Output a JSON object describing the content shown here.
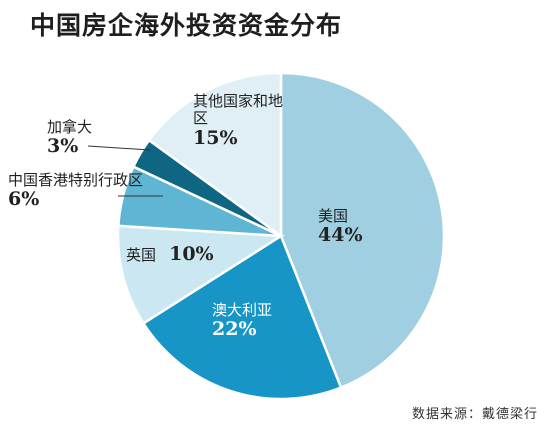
{
  "chart_data": {
    "type": "pie",
    "title": "中国房企海外投资资金分布",
    "source": "数据来源：戴德梁行",
    "slices": [
      {
        "name": "美国",
        "value": 44,
        "label": "44%",
        "color": "#9fcfe0"
      },
      {
        "name": "澳大利亚",
        "value": 22,
        "label": "22%",
        "color": "#1795c7"
      },
      {
        "name": "英国",
        "value": 10,
        "label": "10%",
        "color": "#cbe7f1"
      },
      {
        "name": "中国香港特别行政区",
        "value": 6,
        "label": "6%",
        "color": "#5fb6d4"
      },
      {
        "name": "加拿大",
        "value": 3,
        "label": "3%",
        "color": "#0f6683"
      },
      {
        "name": "其他国家和地区",
        "value": 15,
        "label": "15%",
        "color": "#dfeff5"
      }
    ]
  }
}
